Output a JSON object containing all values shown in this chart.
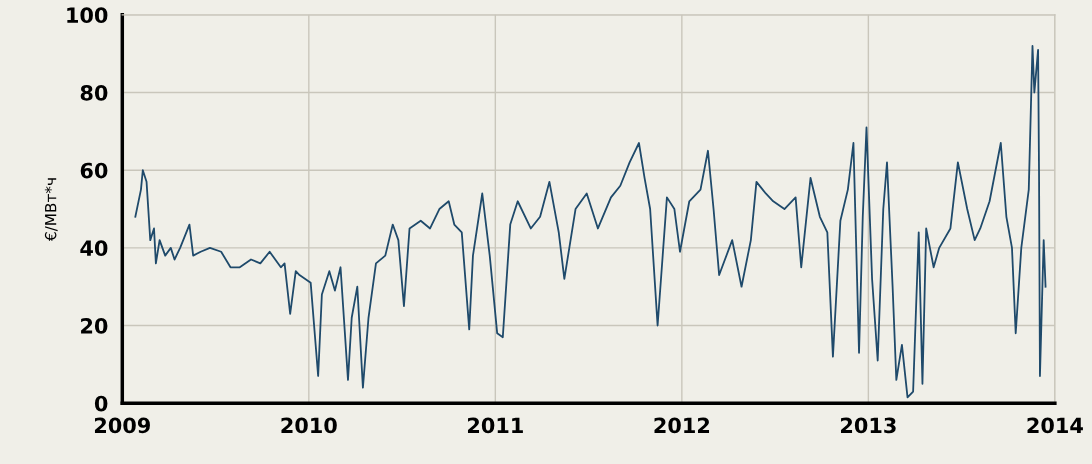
{
  "chart_data": {
    "type": "line",
    "ylabel": "€/МВт*ч",
    "x": [
      2009.07,
      2009.1,
      2009.11,
      2009.13,
      2009.15,
      2009.17,
      2009.18,
      2009.2,
      2009.23,
      2009.26,
      2009.28,
      2009.31,
      2009.36,
      2009.38,
      2009.42,
      2009.47,
      2009.53,
      2009.58,
      2009.63,
      2009.69,
      2009.74,
      2009.79,
      2009.85,
      2009.87,
      2009.9,
      2009.93,
      2009.95,
      2010.01,
      2010.05,
      2010.07,
      2010.11,
      2010.14,
      2010.17,
      2010.21,
      2010.23,
      2010.26,
      2010.29,
      2010.32,
      2010.36,
      2010.41,
      2010.45,
      2010.48,
      2010.51,
      2010.54,
      2010.6,
      2010.65,
      2010.7,
      2010.75,
      2010.78,
      2010.82,
      2010.86,
      2010.88,
      2010.93,
      2010.97,
      2011.01,
      2011.04,
      2011.08,
      2011.12,
      2011.19,
      2011.24,
      2011.29,
      2011.34,
      2011.37,
      2011.43,
      2011.49,
      2011.55,
      2011.62,
      2011.67,
      2011.72,
      2011.77,
      2011.8,
      2011.83,
      2011.87,
      2011.92,
      2011.96,
      2011.99,
      2012.04,
      2012.1,
      2012.14,
      2012.17,
      2012.2,
      2012.27,
      2012.32,
      2012.37,
      2012.4,
      2012.45,
      2012.49,
      2012.55,
      2012.61,
      2012.64,
      2012.69,
      2012.74,
      2012.78,
      2012.81,
      2012.85,
      2012.89,
      2012.92,
      2012.95,
      2012.97,
      2012.99,
      2013.02,
      2013.05,
      2013.08,
      2013.1,
      2013.13,
      2013.15,
      2013.18,
      2013.21,
      2013.24,
      2013.27,
      2013.29,
      2013.31,
      2013.35,
      2013.38,
      2013.44,
      2013.48,
      2013.53,
      2013.57,
      2013.6,
      2013.65,
      2013.71,
      2013.74,
      2013.77,
      2013.79,
      2013.82,
      2013.86,
      2013.88,
      2013.89,
      2013.91,
      2013.915,
      2013.92,
      2013.94,
      2013.95
    ],
    "series": [
      {
        "color": "#1f4a6b",
        "values": [
          48,
          55,
          60,
          57,
          42,
          45,
          36,
          42,
          38,
          40,
          37,
          40,
          46,
          38,
          39,
          40,
          39,
          35,
          35,
          37,
          36,
          39,
          35,
          36,
          23,
          34,
          33,
          31,
          7,
          28,
          34,
          29,
          35,
          6,
          22,
          30,
          4,
          22,
          36,
          38,
          46,
          42,
          25,
          45,
          47,
          45,
          50,
          52,
          46,
          44,
          19,
          38,
          54,
          38,
          18,
          17,
          46,
          52,
          45,
          48,
          57,
          44,
          32,
          50,
          54,
          45,
          53,
          56,
          62,
          67,
          58,
          50,
          20,
          53,
          50,
          39,
          52,
          55,
          65,
          50,
          33,
          42,
          30,
          42,
          57,
          54,
          52,
          50,
          53,
          35,
          58,
          48,
          44,
          12,
          47,
          55,
          67,
          13,
          48,
          71,
          32,
          11,
          50,
          62,
          30,
          6,
          15,
          1.5,
          3,
          44,
          5,
          45,
          35,
          40,
          45,
          62,
          50,
          42,
          45,
          52,
          67,
          48,
          40,
          18,
          40,
          55,
          92,
          80,
          91,
          60,
          7,
          42,
          30
        ]
      }
    ],
    "xlim": [
      2009,
      2014
    ],
    "xticks": [
      2009,
      2010,
      2011,
      2012,
      2013,
      2014
    ],
    "ylim": [
      0,
      100
    ],
    "yticks": [
      0,
      20,
      40,
      60,
      80,
      100
    ],
    "grid": true,
    "marker": "none",
    "line_style": "solid"
  }
}
